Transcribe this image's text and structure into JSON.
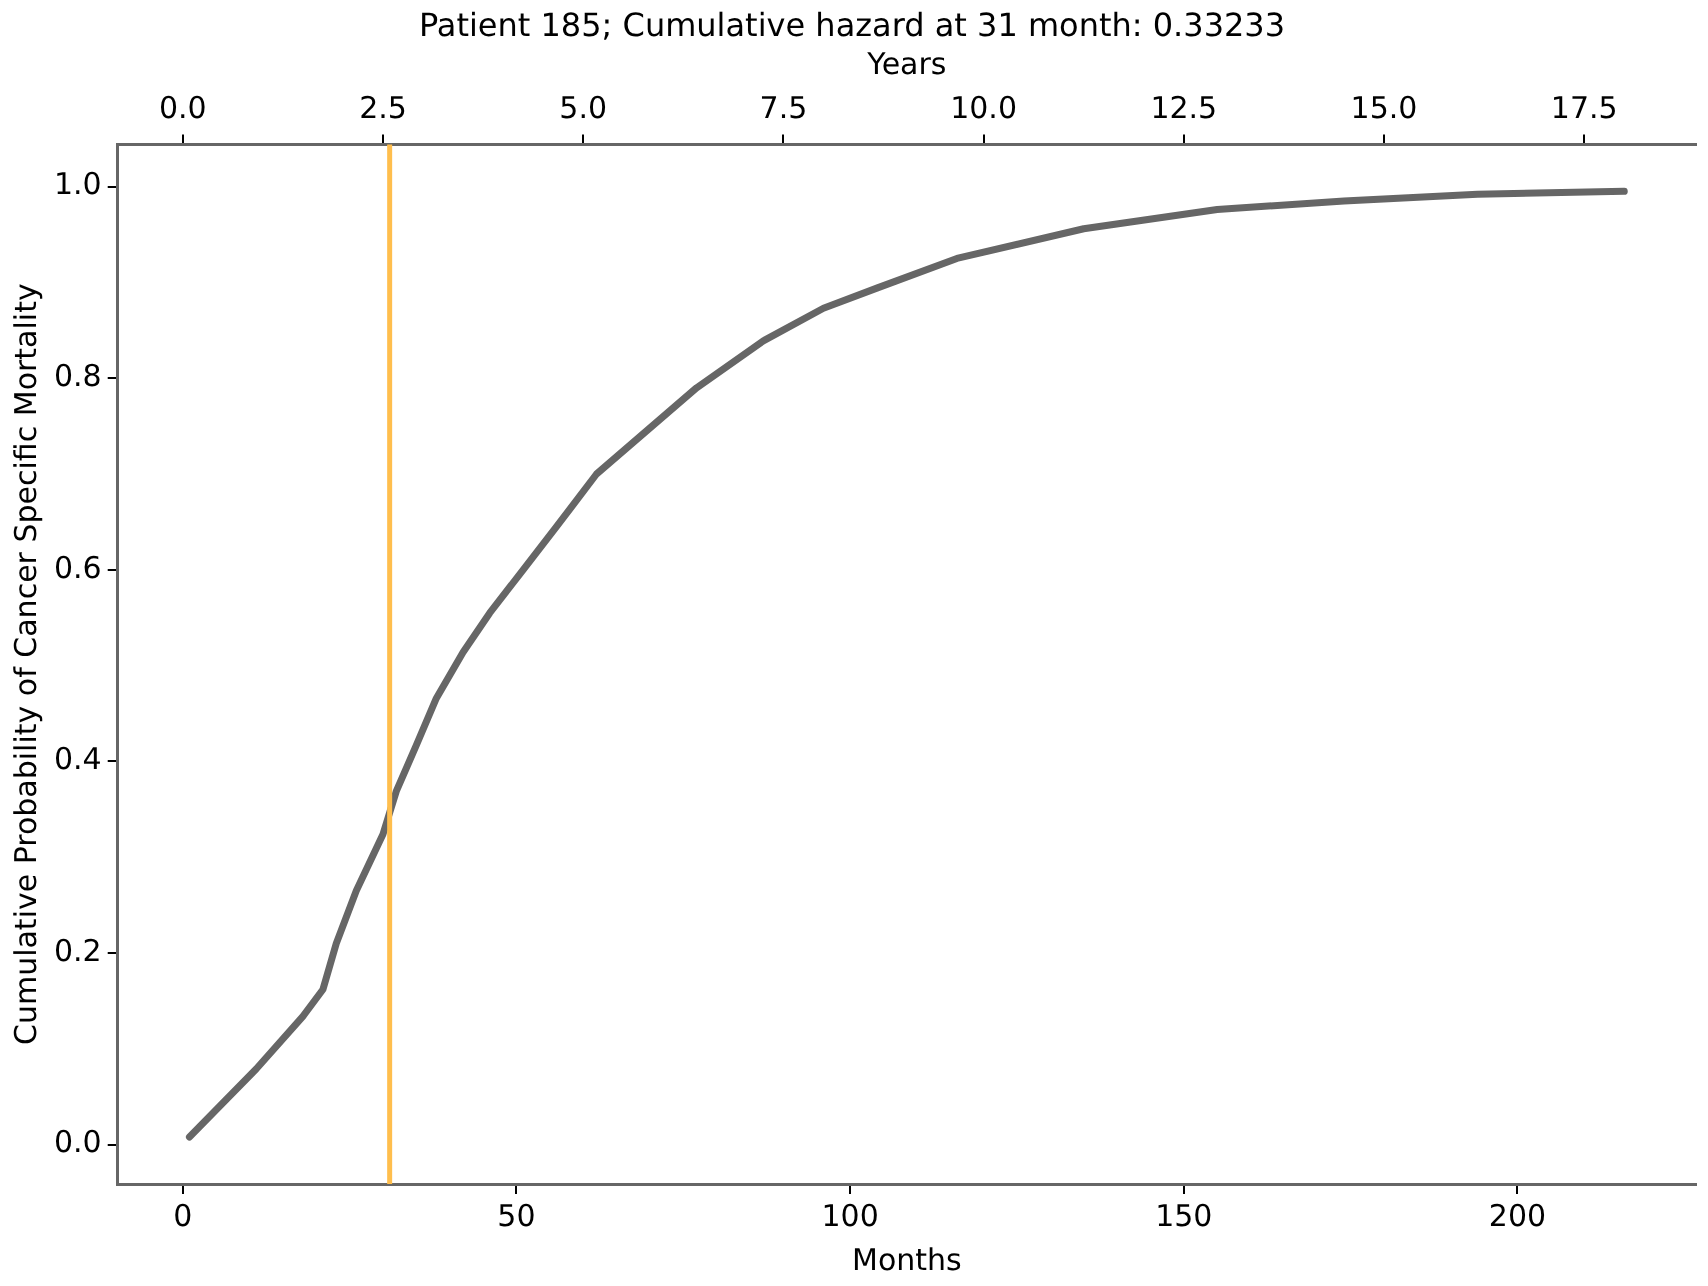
{
  "chart_data": {
    "type": "line",
    "title": "Patient 185; Cumulative hazard at 31 month: 0.33233",
    "xlabel": "Months",
    "x2label": "Years",
    "ylabel": "Cumulative Probability of Cancer Specific Mortality",
    "x": [
      1,
      11,
      18,
      21,
      23,
      26,
      30,
      32,
      35,
      38,
      42,
      46,
      51,
      56,
      62,
      69,
      77,
      87,
      96,
      104,
      116,
      135,
      155,
      174,
      194,
      216
    ],
    "series": [
      {
        "color": "#666666",
        "values": [
          0.008,
          0.079,
          0.134,
          0.162,
          0.21,
          0.265,
          0.324,
          0.369,
          0.417,
          0.466,
          0.514,
          0.555,
          0.6,
          0.645,
          0.7,
          0.742,
          0.79,
          0.839,
          0.873,
          0.894,
          0.925,
          0.956,
          0.976,
          0.985,
          0.992,
          0.995
        ]
      }
    ],
    "xlim": [
      -9.75,
      226.75
    ],
    "xticks": [
      0,
      50,
      100,
      150,
      200
    ],
    "x2lim": [
      -0.8125,
      18.896
    ],
    "x2ticks": [
      {
        "value": 0,
        "label": "0.0"
      },
      {
        "value": 2.5,
        "label": "2.5"
      },
      {
        "value": 5,
        "label": "5.0"
      },
      {
        "value": 7.5,
        "label": "7.5"
      },
      {
        "value": 10,
        "label": "10.0"
      },
      {
        "value": 12.5,
        "label": "12.5"
      },
      {
        "value": 15,
        "label": "15.0"
      },
      {
        "value": 17.5,
        "label": "17.5"
      }
    ],
    "ylim": [
      -0.041,
      1.044
    ],
    "yticks": [
      {
        "value": 0,
        "label": "0.0"
      },
      {
        "value": 0.2,
        "label": "0.2"
      },
      {
        "value": 0.4,
        "label": "0.4"
      },
      {
        "value": 0.6,
        "label": "0.6"
      },
      {
        "value": 0.8,
        "label": "0.8"
      },
      {
        "value": 1,
        "label": "1.0"
      }
    ],
    "ref_lines": [
      {
        "axis": "x",
        "value": 31,
        "color": "#ffbe4d"
      }
    ],
    "grid": false,
    "legend": false,
    "marker": "none",
    "line_style": "solid"
  }
}
